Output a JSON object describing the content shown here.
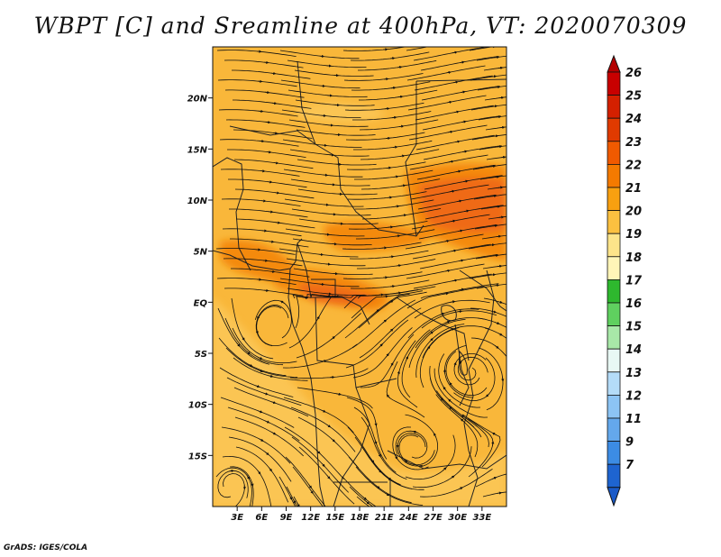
{
  "title": "WBPT [C] and Sreamline at 400hPa, VT: 2020070309",
  "credit": "GrADS: IGES/COLA",
  "map": {
    "lon_range": [
      0,
      36
    ],
    "lat_range": [
      -20,
      25
    ],
    "lon_ticks": [
      {
        "value": 3,
        "label": "3E"
      },
      {
        "value": 6,
        "label": "6E"
      },
      {
        "value": 9,
        "label": "9E"
      },
      {
        "value": 12,
        "label": "12E"
      },
      {
        "value": 15,
        "label": "15E"
      },
      {
        "value": 18,
        "label": "18E"
      },
      {
        "value": 21,
        "label": "21E"
      },
      {
        "value": 24,
        "label": "24E"
      },
      {
        "value": 27,
        "label": "27E"
      },
      {
        "value": 30,
        "label": "30E"
      },
      {
        "value": 33,
        "label": "33E"
      }
    ],
    "lat_ticks": [
      {
        "value": 20,
        "label": "20N"
      },
      {
        "value": 15,
        "label": "15N"
      },
      {
        "value": 10,
        "label": "10N"
      },
      {
        "value": 5,
        "label": "5N"
      },
      {
        "value": 0,
        "label": "EQ"
      },
      {
        "value": -5,
        "label": "5S"
      },
      {
        "value": -10,
        "label": "10S"
      },
      {
        "value": -15,
        "label": "15S"
      }
    ]
  },
  "colorbar": {
    "levels": [
      {
        "label": "26",
        "color": "#c80000"
      },
      {
        "label": "25",
        "color": "#d42000"
      },
      {
        "label": "24",
        "color": "#e03a00"
      },
      {
        "label": "23",
        "color": "#f05a00"
      },
      {
        "label": "22",
        "color": "#f47a00"
      },
      {
        "label": "21",
        "color": "#f8a010"
      },
      {
        "label": "20",
        "color": "#fbc040"
      },
      {
        "label": "19",
        "color": "#fde48a"
      },
      {
        "label": "18",
        "color": "#fff5b8"
      },
      {
        "label": "17",
        "color": "#2eb82e"
      },
      {
        "label": "16",
        "color": "#5fd05f"
      },
      {
        "label": "15",
        "color": "#a8e8a8"
      },
      {
        "label": "14",
        "color": "#e8f8f4"
      },
      {
        "label": "13",
        "color": "#b4dcf8"
      },
      {
        "label": "12",
        "color": "#8cc4f4"
      },
      {
        "label": "11",
        "color": "#64a8ec"
      },
      {
        "label": "9",
        "color": "#3c8ce4"
      },
      {
        "label": "7",
        "color": "#1e64d0"
      }
    ],
    "top_color": "#b40000",
    "bottom_color": "#1a5ac8"
  },
  "fields": {
    "base_color": "#f9b73a",
    "level_colors": {
      "20": "#fbc552",
      "21": "#f7a41e",
      "22": "#f48a0c",
      "23": "#ef6a14"
    }
  }
}
